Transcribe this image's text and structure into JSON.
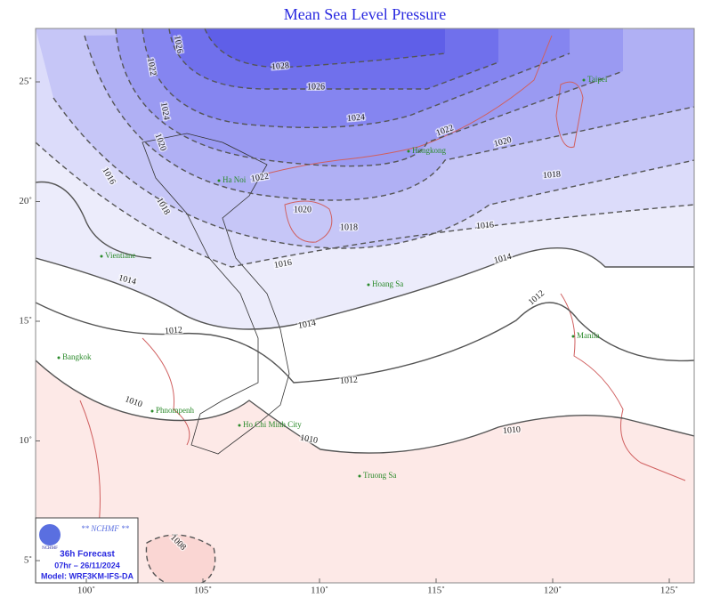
{
  "title": "Mean Sea Level Pressure",
  "lon_ticks": [
    {
      "value": 100,
      "label": "100˚"
    },
    {
      "value": 105,
      "label": "105˚"
    },
    {
      "value": 110,
      "label": "110˚"
    },
    {
      "value": 115,
      "label": "115˚"
    },
    {
      "value": 120,
      "label": "120˚"
    },
    {
      "value": 125,
      "label": "125˚"
    }
  ],
  "lat_ticks": [
    {
      "value": 25,
      "label": "25˚"
    },
    {
      "value": 20,
      "label": "20˚"
    },
    {
      "value": 15,
      "label": "15˚"
    },
    {
      "value": 10,
      "label": "10˚"
    },
    {
      "value": 5,
      "label": "5˚"
    }
  ],
  "isobar_labels": [
    "1028",
    "1026",
    "1026",
    "1024",
    "1024",
    "1022",
    "1022",
    "1022",
    "1020",
    "1020",
    "1020",
    "1018",
    "1018",
    "1018",
    "1016",
    "1016",
    "1016",
    "1014",
    "1014",
    "1014",
    "1012",
    "1012",
    "1012",
    "1010",
    "1010",
    "1010",
    "1008"
  ],
  "cities": [
    "Taipei",
    "Hongkong",
    "Ha Noi",
    "Vientiane",
    "Hoang Sa",
    "Bangkok",
    "Phnompenh",
    "Ho Chi Minh City",
    "Manila",
    "Truong Sa"
  ],
  "info_box": {
    "logo": "NCHMF",
    "agency": "** NCHMF **",
    "forecast": "36h Forecast",
    "valid_time": "07hr – 26/11/2024",
    "model": "Model: WRF3KM-IFS-DA"
  }
}
